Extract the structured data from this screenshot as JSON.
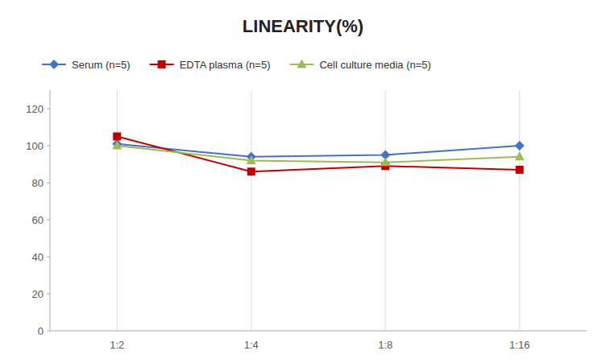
{
  "chart_data": {
    "type": "line",
    "title": "LINEARITY(%)",
    "categories": [
      "1:2",
      "1:4",
      "1:8",
      "1:16"
    ],
    "series": [
      {
        "name": "Serum (n=5)",
        "color": "#4472C4",
        "marker": "diamond",
        "values": [
          101,
          94,
          95,
          100
        ]
      },
      {
        "name": "EDTA plasma (n=5)",
        "color": "#C00000",
        "marker": "square",
        "values": [
          105,
          86,
          89,
          87
        ]
      },
      {
        "name": "Cell culture media (n=5)",
        "color": "#9BBB59",
        "marker": "triangle",
        "values": [
          100,
          92,
          91,
          94
        ]
      }
    ],
    "ylim": [
      0,
      130
    ],
    "yticks": [
      0,
      20,
      40,
      60,
      80,
      100,
      120
    ],
    "grid": "x",
    "legend": "top"
  }
}
